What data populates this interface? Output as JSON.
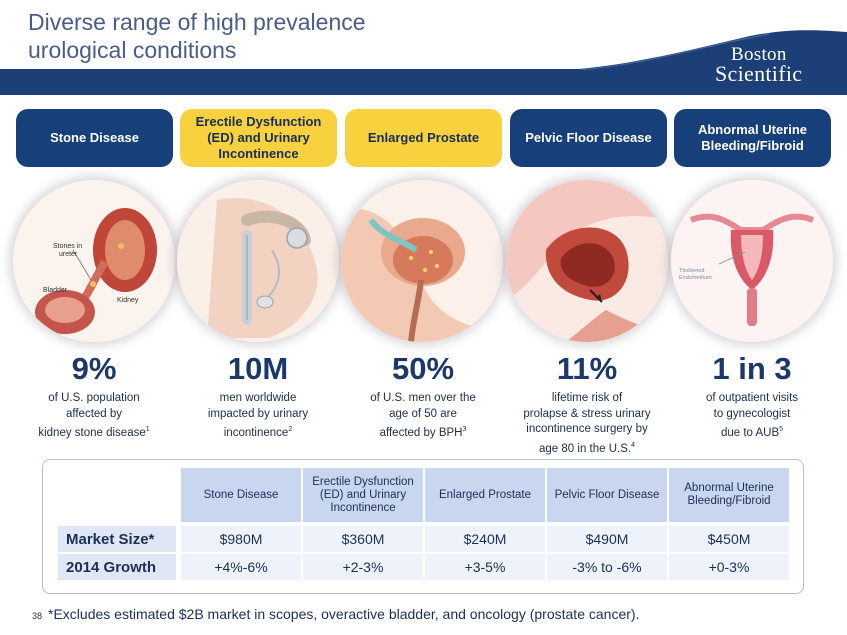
{
  "title": {
    "line1": "Diverse range of high prevalence",
    "line2": "urological conditions"
  },
  "logo": {
    "line1": "Boston",
    "line2": "Scientific"
  },
  "categories": [
    {
      "label": "Stone Disease",
      "style": "blue"
    },
    {
      "label": "Erectile Dysfunction (ED) and Urinary Incontinence",
      "style": "gold"
    },
    {
      "label": "Enlarged Prostate",
      "style": "gold"
    },
    {
      "label": "Pelvic Floor Disease",
      "style": "blue"
    },
    {
      "label": "Abnormal Uterine Bleeding/Fibroid",
      "style": "blue"
    }
  ],
  "illustrations": {
    "stone": {
      "label1": "Stones in",
      "label2": "ureter",
      "label3": "Bladder",
      "label4": "Kidney"
    },
    "uterus": {
      "label1": "Thickened",
      "label2": "Endometrium"
    }
  },
  "stats": [
    {
      "value": "9%",
      "lines": [
        "of U.S. population",
        "affected by",
        "kidney stone disease"
      ],
      "sup": "1"
    },
    {
      "value": "10M",
      "lines": [
        "men worldwide",
        "impacted by urinary",
        "incontinence"
      ],
      "sup": "2"
    },
    {
      "value": "50%",
      "lines": [
        "of U.S. men over the",
        "age of 50 are",
        "affected by BPH"
      ],
      "sup": "3"
    },
    {
      "value": "11%",
      "lines": [
        "lifetime risk of",
        "prolapse & stress urinary",
        "incontinence surgery by",
        "age 80 in the U.S."
      ],
      "sup": "4"
    },
    {
      "value": "1 in 3",
      "lines": [
        "of outpatient visits",
        "to gynecologist",
        "due to AUB"
      ],
      "sup": "5"
    }
  ],
  "table": {
    "headers": [
      "Stone Disease",
      "Erectile Dysfunction (ED) and Urinary Incontinence",
      "Enlarged Prostate",
      "Pelvic Floor Disease",
      "Abnormal Uterine Bleeding/Fibroid"
    ],
    "rows": [
      {
        "label": "Market Size*",
        "values": [
          "$980M",
          "$360M",
          "$240M",
          "$490M",
          "$450M"
        ]
      },
      {
        "label": "2014 Growth",
        "values": [
          "+4%-6%",
          "+2-3%",
          "+3-5%",
          "-3% to -6%",
          "+0-3%"
        ]
      }
    ]
  },
  "footnote": {
    "page": "38",
    "text": "*Excludes estimated $2B market in scopes, overactive bladder, and oncology (prostate cancer)."
  },
  "colors": {
    "navy": "#173f7a",
    "gold": "#f7d23e",
    "title": "#4a5d86",
    "band": "#1d3f78"
  }
}
